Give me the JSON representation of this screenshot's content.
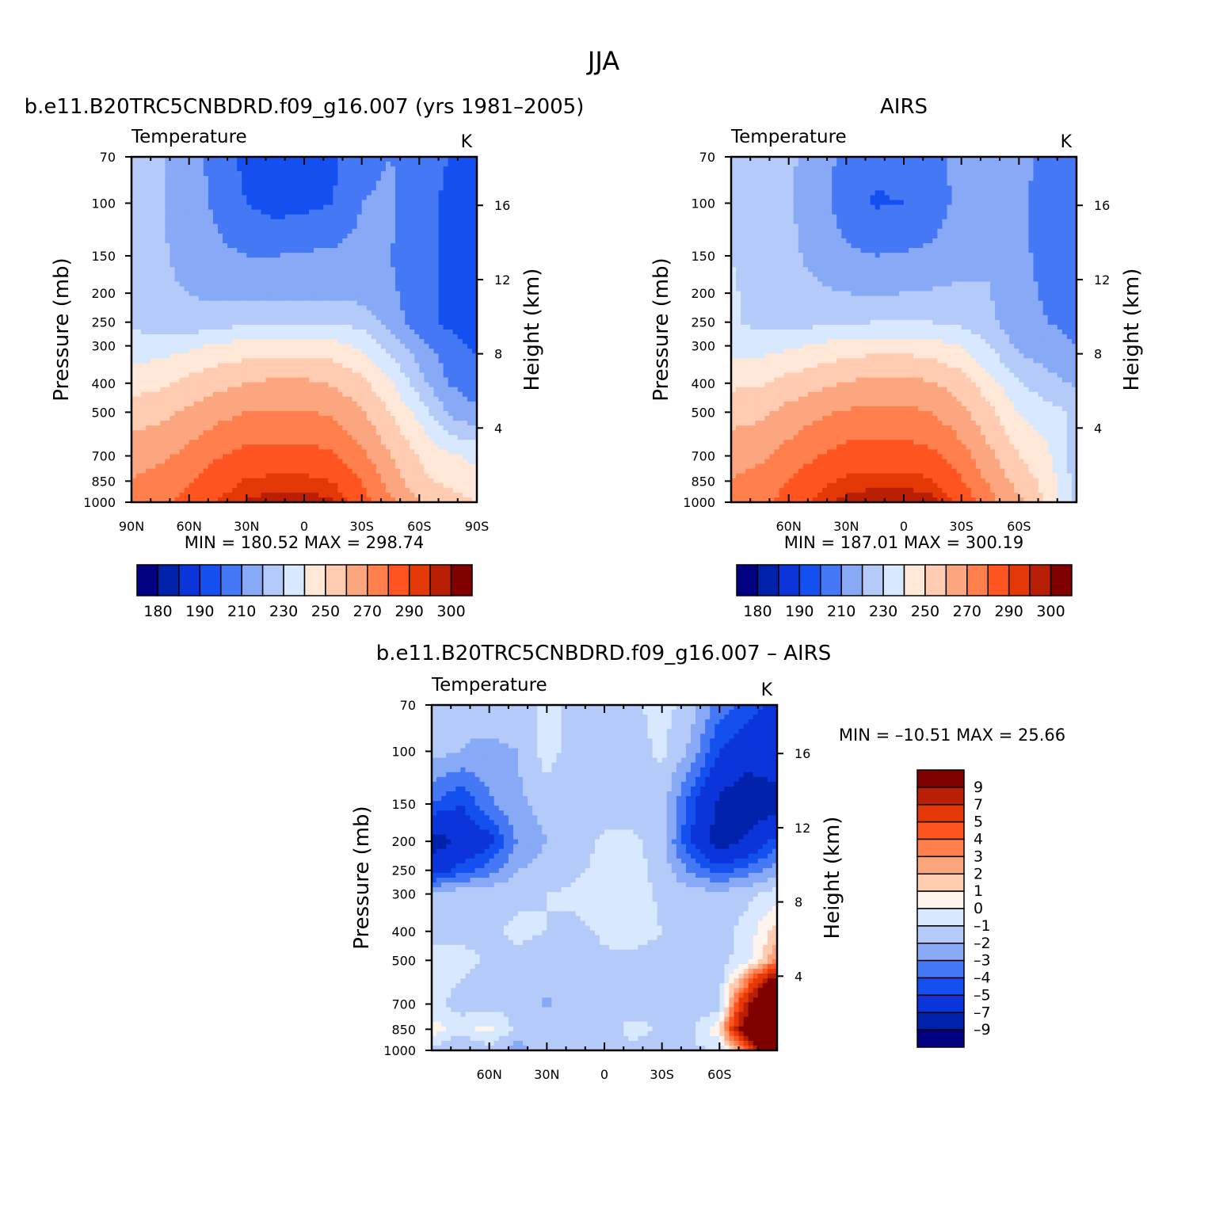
{
  "figure": {
    "title": "JJA"
  },
  "colors": {
    "temperature": [
      "#000080",
      "#0022aa",
      "#0b35db",
      "#1450f0",
      "#4478f5",
      "#88a9f6",
      "#b4cbfa",
      "#d8e8ff",
      "#ffe8d8",
      "#ffcbb1",
      "#fca680",
      "#ff7f4d",
      "#ff5420",
      "#e43806",
      "#b81f05",
      "#800000"
    ],
    "difference": [
      "#000080",
      "#0022aa",
      "#0b35db",
      "#1450f0",
      "#4478f5",
      "#88a9f6",
      "#b4cbfa",
      "#d8e8ff",
      "#fff4ec",
      "#ffcbb1",
      "#fca680",
      "#ff7f4d",
      "#ff5420",
      "#e43806",
      "#b81f05",
      "#800000"
    ]
  },
  "chart_data": [
    {
      "type": "heatmap",
      "panel_title": "b.e11.B20TRC5CNBDRD.f09_g16.007 (yrs 1981–2005)",
      "left_title": "Temperature",
      "right_title": "K",
      "ylabel": "Pressure (mb)",
      "ylabel_right": "Height (km)",
      "x_ticks": [
        "90N",
        "60N",
        "30N",
        "0",
        "30S",
        "60S",
        "90S"
      ],
      "y_ticks": [
        "70",
        "100",
        "150",
        "200",
        "250",
        "300",
        "400",
        "500",
        "700",
        "850",
        "1000"
      ],
      "height_ticks": [
        "16",
        "12",
        "8",
        "4"
      ],
      "x_range": [
        90,
        -90
      ],
      "y_range": [
        1000,
        70
      ],
      "y_log": true,
      "stats": "MIN =  180.52   MAX =  298.74",
      "colorbar_labels": [
        "180",
        "190",
        "210",
        "230",
        "250",
        "270",
        "290",
        "300"
      ],
      "field": {
        "lat": [
          90,
          75,
          60,
          45,
          30,
          15,
          0,
          -15,
          -30,
          -45,
          -60,
          -75,
          -90
        ],
        "levels": [
          70,
          100,
          150,
          200,
          250,
          300,
          400,
          500,
          700,
          850,
          1000
        ],
        "values": [
          [
            225,
            222,
            212,
            208,
            196,
            193,
            195,
            198,
            207,
            210,
            206,
            200,
            194
          ],
          [
            223,
            221,
            214,
            208,
            200,
            196,
            197,
            200,
            210,
            212,
            204,
            198,
            193
          ],
          [
            222,
            221,
            218,
            212,
            210,
            210,
            211,
            212,
            213,
            210,
            204,
            198,
            196
          ],
          [
            222,
            221,
            220,
            218,
            217,
            217,
            218,
            218,
            216,
            212,
            204,
            198,
            196
          ],
          [
            228,
            224,
            223,
            225,
            228,
            229,
            229,
            229,
            226,
            216,
            204,
            198,
            196
          ],
          [
            234,
            236,
            238,
            242,
            244,
            245,
            245,
            244,
            238,
            226,
            214,
            204,
            198
          ],
          [
            246,
            248,
            253,
            257,
            260,
            262,
            262,
            259,
            253,
            241,
            224,
            210,
            204
          ],
          [
            255,
            257,
            262,
            267,
            270,
            271,
            271,
            268,
            261,
            250,
            237,
            218,
            212
          ],
          [
            266,
            268,
            273,
            279,
            283,
            284,
            284,
            281,
            273,
            260,
            249,
            242,
            238
          ],
          [
            270,
            274,
            279,
            286,
            291,
            292,
            292,
            290,
            280,
            266,
            253,
            247,
            242
          ],
          [
            272,
            277,
            284,
            290,
            296,
            298,
            298,
            296,
            285,
            272,
            260,
            255,
            250
          ]
        ]
      }
    },
    {
      "type": "heatmap",
      "panel_title": "AIRS",
      "left_title": "Temperature",
      "right_title": "K",
      "ylabel": "Pressure (mb)",
      "ylabel_right": "Height (km)",
      "x_ticks": [
        "60N",
        "30N",
        "0",
        "30S",
        "60S"
      ],
      "y_ticks": [
        "70",
        "100",
        "150",
        "200",
        "250",
        "300",
        "400",
        "500",
        "700",
        "850",
        "1000"
      ],
      "height_ticks": [
        "16",
        "12",
        "8",
        "4"
      ],
      "x_range": [
        90,
        -90
      ],
      "y_range": [
        1000,
        70
      ],
      "y_log": true,
      "stats": "MIN =  187.01   MAX =  300.19",
      "colorbar_labels": [
        "180",
        "190",
        "210",
        "230",
        "250",
        "270",
        "290",
        "300"
      ],
      "field": {
        "lat": [
          90,
          75,
          60,
          45,
          30,
          15,
          0,
          -15,
          -30,
          -45,
          -60,
          -75,
          -90
        ],
        "levels": [
          70,
          100,
          150,
          200,
          250,
          300,
          400,
          500,
          700,
          850,
          1000
        ],
        "values": [
          [
            228,
            225,
            222,
            215,
            207,
            202,
            204,
            206,
            214,
            218,
            214,
            207,
            202
          ],
          [
            226,
            224,
            221,
            214,
            205,
            199,
            200,
            205,
            213,
            220,
            212,
            205,
            200
          ],
          [
            230,
            224,
            223,
            216,
            212,
            210,
            211,
            212,
            216,
            220,
            213,
            206,
            205
          ],
          [
            232,
            224,
            224,
            222,
            220,
            219,
            220,
            221,
            222,
            220,
            214,
            208,
            207
          ],
          [
            232,
            226,
            226,
            227,
            229,
            230,
            230,
            230,
            228,
            222,
            214,
            210,
            208
          ],
          [
            236,
            236,
            238,
            242,
            244,
            246,
            246,
            244,
            240,
            229,
            218,
            213,
            210
          ],
          [
            248,
            249,
            254,
            257,
            261,
            263,
            263,
            261,
            255,
            244,
            230,
            224,
            218
          ],
          [
            256,
            258,
            263,
            268,
            271,
            272,
            272,
            270,
            263,
            252,
            240,
            234,
            228
          ],
          [
            266,
            268,
            274,
            280,
            284,
            285,
            285,
            282,
            274,
            262,
            250,
            242,
            222
          ],
          [
            270,
            274,
            280,
            287,
            292,
            293,
            293,
            291,
            281,
            268,
            256,
            246,
            226
          ],
          [
            272,
            276,
            284,
            292,
            297,
            299,
            299,
            297,
            287,
            273,
            262,
            248,
            228
          ]
        ]
      }
    },
    {
      "type": "heatmap",
      "panel_title": "b.e11.B20TRC5CNBDRD.f09_g16.007 – AIRS",
      "left_title": "Temperature",
      "right_title": "K",
      "ylabel": "Pressure (mb)",
      "ylabel_right": "Height (km)",
      "x_ticks": [
        "60N",
        "30N",
        "0",
        "30S",
        "60S"
      ],
      "y_ticks": [
        "70",
        "100",
        "150",
        "200",
        "250",
        "300",
        "400",
        "500",
        "700",
        "850",
        "1000"
      ],
      "height_ticks": [
        "16",
        "12",
        "8",
        "4"
      ],
      "x_range": [
        90,
        -90
      ],
      "y_range": [
        1000,
        70
      ],
      "y_log": true,
      "stats": "MIN = –10.51   MAX =   25.66",
      "colorbar_labels": [
        "9",
        "7",
        "5",
        "4",
        "3",
        "2",
        "1",
        "0",
        "–1",
        "–2",
        "–3",
        "–4",
        "–5",
        "–7",
        "–9"
      ],
      "field": {
        "lat": [
          90,
          75,
          60,
          45,
          30,
          15,
          0,
          -15,
          -30,
          -45,
          -60,
          -75,
          -90
        ],
        "levels": [
          70,
          100,
          150,
          200,
          250,
          300,
          400,
          500,
          700,
          850,
          1000
        ],
        "values": [
          [
            -1.5,
            -1.8,
            -1.6,
            -1.4,
            -0.8,
            -1.2,
            -1.6,
            -1.2,
            -0.6,
            -1.5,
            -3.5,
            -4.5,
            -5.5
          ],
          [
            -1.6,
            -2.0,
            -2.2,
            -2.0,
            -0.5,
            -1.6,
            -1.8,
            -1.4,
            -0.8,
            -2.2,
            -5.0,
            -6.0,
            -5.5
          ],
          [
            -4.0,
            -5.0,
            -3.2,
            -2.2,
            -1.6,
            -2.0,
            -1.6,
            -1.6,
            -1.6,
            -4.5,
            -7.5,
            -8.5,
            -8.0
          ],
          [
            -8.0,
            -6.5,
            -5.5,
            -2.8,
            -2.0,
            -1.6,
            -0.8,
            -0.8,
            -1.6,
            -5.0,
            -8.0,
            -6.5,
            -4.5
          ],
          [
            -6.0,
            -4.5,
            -3.5,
            -2.0,
            -1.6,
            -1.2,
            -0.6,
            -0.6,
            -1.4,
            -3.2,
            -4.5,
            -3.5,
            -2.5
          ],
          [
            -1.5,
            -1.4,
            -1.3,
            -1.2,
            -1.0,
            -0.8,
            -0.5,
            -0.5,
            -1.2,
            -1.6,
            -1.6,
            -1.2,
            -0.5
          ],
          [
            -1.2,
            -1.4,
            -1.2,
            -0.8,
            -1.0,
            -1.2,
            -0.9,
            -0.6,
            -1.0,
            -1.2,
            -1.4,
            -0.6,
            1.5
          ],
          [
            -0.8,
            -0.6,
            -1.2,
            -1.2,
            -1.4,
            -1.2,
            -1.1,
            -1.2,
            -1.4,
            -1.6,
            -1.4,
            -0.4,
            3.0
          ],
          [
            -0.6,
            -1.4,
            -1.6,
            -1.2,
            -2.2,
            -1.4,
            -1.4,
            -1.6,
            -1.2,
            -2.0,
            -1.5,
            8.0,
            20.0
          ],
          [
            0.5,
            -0.6,
            0.5,
            -1.4,
            -1.0,
            -1.2,
            -1.6,
            -0.6,
            -1.2,
            -1.2,
            0.8,
            12.0,
            25.0
          ],
          [
            -1.2,
            -2.2,
            -1.6,
            -2.5,
            -1.4,
            -1.2,
            -1.2,
            -1.4,
            -1.6,
            -1.2,
            -1.0,
            4.0,
            18.0
          ]
        ]
      }
    }
  ]
}
